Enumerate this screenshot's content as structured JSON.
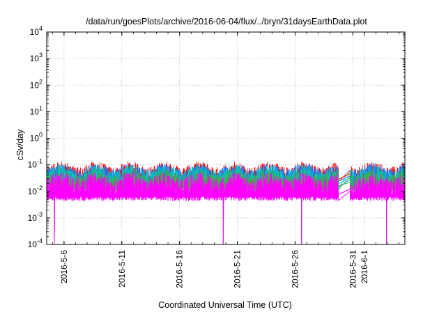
{
  "chart_data": {
    "type": "line",
    "title": "/data/run/goesPlots/archive/2016-06-04/flux/../bryn/31daysEarthData.plot",
    "xlabel": "Coordinated Universal Time (UTC)",
    "ylabel": "cSv/day",
    "yscale": "log",
    "ylim": [
      0.0001,
      10000
    ],
    "xlim": [
      "2016-05-04 12:00",
      "2016-06-04 12:00"
    ],
    "grid": true,
    "y_ticks": [
      {
        "value": 0.0001,
        "base": "10",
        "exp": "-4"
      },
      {
        "value": 0.001,
        "base": "10",
        "exp": "-3"
      },
      {
        "value": 0.01,
        "base": "10",
        "exp": "-2"
      },
      {
        "value": 0.1,
        "base": "10",
        "exp": "-1"
      },
      {
        "value": 1,
        "base": "10",
        "exp": "0"
      },
      {
        "value": 10,
        "base": "10",
        "exp": "1"
      },
      {
        "value": 100,
        "base": "10",
        "exp": "2"
      },
      {
        "value": 1000,
        "base": "10",
        "exp": "3"
      },
      {
        "value": 10000,
        "base": "10",
        "exp": "4"
      }
    ],
    "x_ticks": [
      "2016-5-6",
      "2016-5-11",
      "2016-5-16",
      "2016-5-21",
      "2016-5-26",
      "2016-5-31",
      "2016-6-1"
    ],
    "data_gaps": [
      [
        "2016-05-29 18:00",
        "2016-05-30 18:00"
      ]
    ],
    "dropouts": [
      "2016-05-05 04:00",
      "2016-05-19 19:00",
      "2016-05-26 13:00",
      "2016-06-02 22:00"
    ],
    "series": [
      {
        "color": "#ff0000",
        "baseline": 0.045,
        "peak": 0.1,
        "floor": 0.018
      },
      {
        "color": "#1f77ff",
        "baseline": 0.038,
        "peak": 0.085,
        "floor": 0.015
      },
      {
        "color": "#00c0c0",
        "baseline": 0.032,
        "peak": 0.075,
        "floor": 0.012
      },
      {
        "color": "#3cb043",
        "baseline": 0.022,
        "peak": 0.05,
        "floor": 0.01
      },
      {
        "color": "#ff00ff",
        "baseline": 0.012,
        "peak": 0.04,
        "floor": 0.0048
      }
    ]
  }
}
